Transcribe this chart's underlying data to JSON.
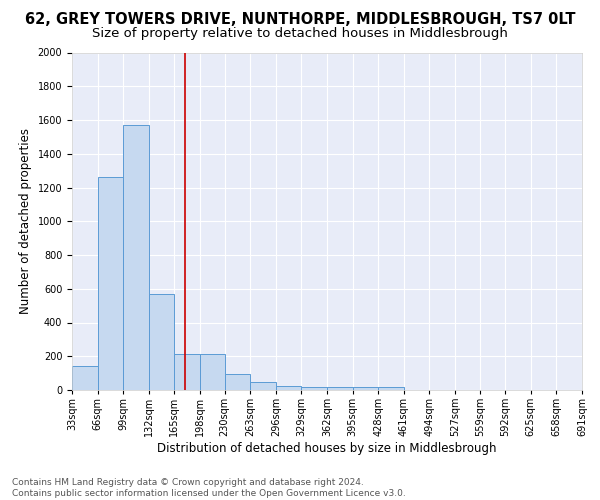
{
  "title": "62, GREY TOWERS DRIVE, NUNTHORPE, MIDDLESBROUGH, TS7 0LT",
  "subtitle": "Size of property relative to detached houses in Middlesbrough",
  "xlabel": "Distribution of detached houses by size in Middlesbrough",
  "ylabel": "Number of detached properties",
  "footer_line1": "Contains HM Land Registry data © Crown copyright and database right 2024.",
  "footer_line2": "Contains public sector information licensed under the Open Government Licence v3.0.",
  "bin_edges": [
    33,
    66,
    99,
    132,
    165,
    198,
    230,
    263,
    296,
    329,
    362,
    395,
    428,
    461,
    494,
    527,
    559,
    592,
    625,
    658,
    691
  ],
  "bin_labels": [
    "33sqm",
    "66sqm",
    "99sqm",
    "132sqm",
    "165sqm",
    "198sqm",
    "230sqm",
    "263sqm",
    "296sqm",
    "329sqm",
    "362sqm",
    "395sqm",
    "428sqm",
    "461sqm",
    "494sqm",
    "527sqm",
    "559sqm",
    "592sqm",
    "625sqm",
    "658sqm",
    "691sqm"
  ],
  "bar_heights": [
    140,
    1265,
    1570,
    570,
    215,
    215,
    95,
    48,
    25,
    20,
    20,
    20,
    15,
    0,
    0,
    0,
    0,
    0,
    0,
    0
  ],
  "bar_color": "#c6d9f0",
  "bar_edge_color": "#5B9BD5",
  "property_size": 179,
  "vline_color": "#cc0000",
  "annotation_box_color": "#ffffff",
  "annotation_box_edge": "#cc0000",
  "ylim": [
    0,
    2000
  ],
  "yticks": [
    0,
    200,
    400,
    600,
    800,
    1000,
    1200,
    1400,
    1600,
    1800,
    2000
  ],
  "background_color": "#e8ecf8",
  "grid_color": "#ffffff",
  "fig_background": "#ffffff",
  "title_fontsize": 10.5,
  "subtitle_fontsize": 9.5,
  "axis_label_fontsize": 8.5,
  "tick_fontsize": 7,
  "annotation_fontsize": 7.5,
  "footer_fontsize": 6.5
}
